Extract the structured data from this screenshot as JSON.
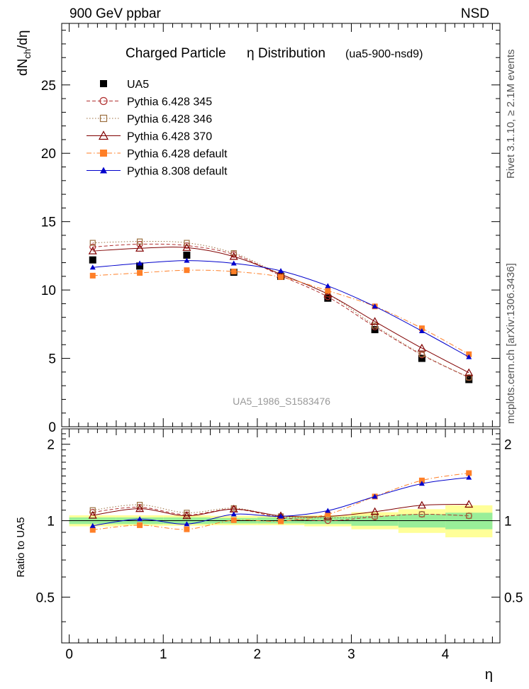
{
  "header": {
    "left": "900 GeV ppbar",
    "right": "NSD"
  },
  "side_labels": {
    "rivet": "Rivet 3.1.10, ≥ 2.1M events",
    "mcplots": "mcplots.cern.ch [arXiv:1306.3436]"
  },
  "chart_data": [
    {
      "type": "line",
      "title": "Charged Particle",
      "title_eta": "η Distribution",
      "subtitle": "(ua5-900-nsd9)",
      "ylabel": "dN",
      "ylabel_sub": "ch",
      "ylabel_tail": "/dη",
      "watermark": "UA5_1986_S1583476",
      "xlim": [
        -0.08,
        4.58
      ],
      "ylim": [
        0,
        29.5
      ],
      "yticks": [
        "0",
        "5",
        "10",
        "15",
        "20",
        "25"
      ],
      "x": [
        0.25,
        0.75,
        1.25,
        1.75,
        2.25,
        2.75,
        3.25,
        3.75,
        4.25
      ],
      "series": [
        {
          "name": "UA5",
          "color": "#000000",
          "marker": "square-filled",
          "line": "none",
          "values": [
            12.2,
            11.75,
            12.55,
            11.3,
            11.0,
            9.4,
            7.1,
            5.0,
            3.45
          ]
        },
        {
          "name": "Pythia 6.428 345",
          "color": "#b03030",
          "marker": "circle-open",
          "line": "dashed",
          "values": [
            13.15,
            13.35,
            13.25,
            12.6,
            11.05,
            9.5,
            7.3,
            5.25,
            3.6
          ]
        },
        {
          "name": "Pythia 6.428 346",
          "color": "#9c7040",
          "marker": "square-open",
          "line": "dotted",
          "values": [
            13.45,
            13.55,
            13.45,
            12.7,
            11.15,
            9.7,
            7.4,
            5.3,
            3.6
          ]
        },
        {
          "name": "Pythia 6.428 370",
          "color": "#800000",
          "marker": "triangle-open",
          "line": "solid",
          "values": [
            12.85,
            13.05,
            13.1,
            12.45,
            11.15,
            9.7,
            7.7,
            5.75,
            3.95
          ]
        },
        {
          "name": "Pythia 6.428 default",
          "color": "#ff7f27",
          "marker": "square-filled",
          "line": "dashdot",
          "values": [
            11.05,
            11.25,
            11.45,
            11.35,
            10.95,
            9.95,
            8.8,
            7.2,
            5.3
          ]
        },
        {
          "name": "Pythia 8.308 default",
          "color": "#0000cc",
          "marker": "triangle-filled",
          "line": "solid",
          "values": [
            11.65,
            11.95,
            12.15,
            11.95,
            11.4,
            10.3,
            8.8,
            7.0,
            5.1
          ]
        }
      ]
    },
    {
      "type": "line",
      "title": "",
      "ylabel": "Ratio to UA5",
      "xlabel": "η",
      "xlim": [
        -0.08,
        4.58
      ],
      "ylim": [
        0.33,
        2.3
      ],
      "yticks": [
        "0.5",
        "1",
        "2"
      ],
      "xticks": [
        "0",
        "1",
        "2",
        "3",
        "4"
      ],
      "bands": [
        {
          "x": [
            0,
            0.5,
            1.0,
            1.5,
            2.0,
            2.5,
            3.0,
            3.5,
            4.0,
            4.5
          ],
          "stat_lo": [
            0.97,
            0.97,
            0.97,
            0.975,
            0.975,
            0.97,
            0.955,
            0.94,
            0.925
          ],
          "stat_hi": [
            1.03,
            1.03,
            1.03,
            1.025,
            1.03,
            1.035,
            1.045,
            1.06,
            1.075
          ],
          "tot_lo": [
            0.95,
            0.955,
            0.955,
            0.96,
            0.96,
            0.95,
            0.925,
            0.895,
            0.86
          ],
          "tot_hi": [
            1.05,
            1.05,
            1.05,
            1.045,
            1.045,
            1.05,
            1.08,
            1.11,
            1.15
          ]
        }
      ],
      "series": [
        {
          "name": "Pythia 6.428 345",
          "values": [
            1.08,
            1.13,
            1.055,
            1.11,
            1.03,
            1.0,
            1.035,
            1.06,
            1.045
          ]
        },
        {
          "name": "Pythia 6.428 346",
          "values": [
            1.1,
            1.155,
            1.075,
            1.12,
            1.04,
            1.025,
            1.04,
            1.06,
            1.045
          ]
        },
        {
          "name": "Pythia 6.428 370",
          "values": [
            1.05,
            1.115,
            1.045,
            1.11,
            1.045,
            1.04,
            1.085,
            1.15,
            1.16
          ]
        },
        {
          "name": "Pythia 6.428 default",
          "values": [
            0.92,
            0.96,
            0.925,
            1.005,
            0.995,
            1.06,
            1.245,
            1.44,
            1.54
          ]
        },
        {
          "name": "Pythia 8.308 default",
          "values": [
            0.955,
            1.015,
            0.97,
            1.06,
            1.04,
            1.095,
            1.245,
            1.4,
            1.48
          ]
        }
      ]
    }
  ]
}
